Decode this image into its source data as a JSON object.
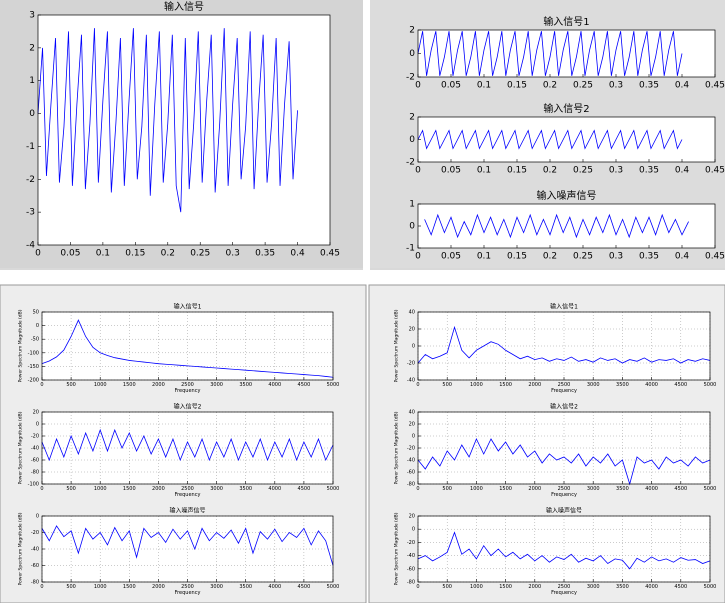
{
  "chart_data": [
    {
      "type": "line",
      "title": "输入信号",
      "color": "#0000ff",
      "x": [
        0,
        0.007,
        0.013,
        0.02,
        0.027,
        0.033,
        0.04,
        0.047,
        0.053,
        0.06,
        0.067,
        0.073,
        0.08,
        0.087,
        0.093,
        0.1,
        0.107,
        0.113,
        0.12,
        0.127,
        0.133,
        0.14,
        0.147,
        0.153,
        0.16,
        0.167,
        0.173,
        0.18,
        0.187,
        0.193,
        0.2,
        0.207,
        0.213,
        0.22,
        0.227,
        0.233,
        0.24,
        0.247,
        0.253,
        0.26,
        0.267,
        0.273,
        0.28,
        0.287,
        0.293,
        0.3,
        0.307,
        0.313,
        0.32,
        0.327,
        0.333,
        0.34,
        0.347,
        0.353,
        0.36,
        0.367,
        0.373,
        0.38,
        0.387,
        0.393,
        0.4
      ],
      "values": [
        0,
        2.0,
        -1.9,
        0.3,
        2.3,
        -2.1,
        -0.4,
        2.5,
        -2.2,
        0.3,
        2.4,
        -2.3,
        -0.3,
        2.6,
        -2.1,
        0.4,
        2.5,
        -2.4,
        -0.3,
        2.3,
        -2.2,
        0.3,
        2.6,
        -2.0,
        -0.4,
        2.4,
        -2.5,
        0.3,
        2.5,
        -2.1,
        -0.3,
        2.4,
        -2.2,
        -3.0,
        2.3,
        -2.3,
        -0.3,
        2.5,
        -2.1,
        0.4,
        2.4,
        -2.4,
        -0.3,
        2.6,
        -2.2,
        0.3,
        2.3,
        -2.0,
        -0.4,
        2.5,
        -2.3,
        0.3,
        2.4,
        -2.1,
        -0.3,
        2.3,
        -2.2,
        0.3,
        2.2,
        -2.0,
        0.1
      ],
      "xlim": [
        0,
        0.45
      ],
      "xticks": [
        0,
        0.05,
        0.1,
        0.15,
        0.2,
        0.25,
        0.3,
        0.35,
        0.4,
        0.45
      ],
      "ylim": [
        -4,
        3
      ],
      "yticks": [
        -4,
        -3,
        -2,
        -1,
        0,
        1,
        2,
        3
      ],
      "grid": false
    },
    {
      "type": "line",
      "title": "输入信号1",
      "color": "#0000ff",
      "x": [
        0,
        0.007,
        0.013,
        0.02,
        0.027,
        0.033,
        0.04,
        0.047,
        0.053,
        0.06,
        0.067,
        0.073,
        0.08,
        0.087,
        0.093,
        0.1,
        0.107,
        0.113,
        0.12,
        0.127,
        0.133,
        0.14,
        0.147,
        0.153,
        0.16,
        0.167,
        0.173,
        0.18,
        0.187,
        0.193,
        0.2,
        0.207,
        0.213,
        0.22,
        0.227,
        0.233,
        0.24,
        0.247,
        0.253,
        0.26,
        0.267,
        0.273,
        0.28,
        0.287,
        0.293,
        0.3,
        0.307,
        0.313,
        0.32,
        0.327,
        0.333,
        0.34,
        0.347,
        0.353,
        0.36,
        0.367,
        0.373,
        0.38,
        0.387,
        0.393,
        0.4
      ],
      "values": [
        0,
        1.9,
        -1.9,
        0.3,
        1.9,
        -1.9,
        -0.3,
        1.9,
        -1.9,
        0.3,
        1.9,
        -1.9,
        -0.3,
        1.9,
        -1.9,
        0.3,
        1.9,
        -1.9,
        -0.3,
        1.9,
        -1.9,
        0.3,
        1.9,
        -1.9,
        -0.3,
        1.9,
        -1.9,
        0.3,
        1.9,
        -1.9,
        -0.3,
        1.9,
        -1.9,
        0.3,
        1.9,
        -1.9,
        -0.3,
        1.9,
        -1.9,
        0.3,
        1.9,
        -1.9,
        -0.3,
        1.9,
        -1.9,
        0.3,
        1.9,
        -1.9,
        -0.3,
        1.9,
        -1.9,
        0.3,
        1.9,
        -1.9,
        -0.3,
        1.9,
        -1.9,
        0.3,
        1.9,
        -1.9,
        0
      ],
      "xlim": [
        0,
        0.45
      ],
      "xticks": [
        0,
        0.05,
        0.1,
        0.15,
        0.2,
        0.25,
        0.3,
        0.35,
        0.4,
        0.45
      ],
      "ylim": [
        -2,
        2
      ],
      "yticks": [
        -2,
        0,
        2
      ],
      "grid": false
    },
    {
      "type": "line",
      "title": "输入信号2",
      "color": "#0000ff",
      "x": [
        0,
        0.007,
        0.013,
        0.02,
        0.027,
        0.033,
        0.04,
        0.047,
        0.053,
        0.06,
        0.067,
        0.073,
        0.08,
        0.087,
        0.093,
        0.1,
        0.107,
        0.113,
        0.12,
        0.127,
        0.133,
        0.14,
        0.147,
        0.153,
        0.16,
        0.167,
        0.173,
        0.18,
        0.187,
        0.193,
        0.2,
        0.207,
        0.213,
        0.22,
        0.227,
        0.233,
        0.24,
        0.247,
        0.253,
        0.26,
        0.267,
        0.273,
        0.28,
        0.287,
        0.293,
        0.3,
        0.307,
        0.313,
        0.32,
        0.327,
        0.333,
        0.34,
        0.347,
        0.353,
        0.36,
        0.367,
        0.373,
        0.38,
        0.387,
        0.393,
        0.4
      ],
      "values": [
        0,
        0.8,
        -0.8,
        0,
        0.8,
        -0.8,
        0,
        0.8,
        -0.8,
        0,
        0.8,
        -0.8,
        0,
        0.8,
        -0.8,
        0,
        0.8,
        -0.8,
        0,
        0.8,
        -0.8,
        0,
        0.8,
        -0.8,
        0,
        0.8,
        -0.8,
        0,
        0.8,
        -0.8,
        0,
        0.8,
        -0.8,
        0,
        0.8,
        -0.8,
        0,
        0.8,
        -0.8,
        0,
        0.8,
        -0.8,
        0,
        0.8,
        -0.8,
        0,
        0.8,
        -0.8,
        0,
        0.8,
        -0.8,
        0,
        0.8,
        -0.8,
        0,
        0.8,
        -0.8,
        0,
        0.8,
        -0.8,
        0
      ],
      "xlim": [
        0,
        0.45
      ],
      "xticks": [
        0,
        0.05,
        0.1,
        0.15,
        0.2,
        0.25,
        0.3,
        0.35,
        0.4,
        0.45
      ],
      "ylim": [
        -2,
        2
      ],
      "yticks": [
        -2,
        0,
        2
      ],
      "grid": false
    },
    {
      "type": "line",
      "title": "输入噪声信号",
      "color": "#0000ff",
      "x": [
        0.01,
        0.02,
        0.03,
        0.04,
        0.05,
        0.06,
        0.07,
        0.08,
        0.09,
        0.1,
        0.11,
        0.12,
        0.13,
        0.14,
        0.15,
        0.16,
        0.17,
        0.18,
        0.19,
        0.2,
        0.21,
        0.22,
        0.23,
        0.24,
        0.25,
        0.26,
        0.27,
        0.28,
        0.29,
        0.3,
        0.31,
        0.32,
        0.33,
        0.34,
        0.35,
        0.36,
        0.37,
        0.38,
        0.39,
        0.4,
        0.41
      ],
      "values": [
        0.3,
        -0.4,
        0.5,
        -0.3,
        0.4,
        -0.5,
        0.2,
        -0.4,
        0.5,
        -0.3,
        0.4,
        -0.4,
        0.3,
        -0.5,
        0.4,
        -0.3,
        0.5,
        -0.4,
        0.3,
        -0.4,
        0.5,
        -0.3,
        0.4,
        -0.5,
        0.3,
        -0.4,
        0.4,
        -0.3,
        0.5,
        -0.4,
        0.3,
        -0.5,
        0.4,
        -0.3,
        0.4,
        -0.4,
        0.5,
        -0.3,
        0.3,
        -0.4,
        0.2
      ],
      "xlim": [
        0,
        0.45
      ],
      "xticks": [
        0,
        0.05,
        0.1,
        0.15,
        0.2,
        0.25,
        0.3,
        0.35,
        0.4,
        0.45
      ],
      "ylim": [
        -1,
        1
      ],
      "yticks": [
        -1,
        0,
        1
      ],
      "grid": false
    },
    {
      "type": "line",
      "title": "输入信号1",
      "xlabel": "Frequency",
      "ylabel": "Power Spectrum Magnitude (dB)",
      "color": "#0000ff",
      "x": [
        0,
        125,
        250,
        375,
        500,
        625,
        750,
        875,
        1000,
        1125,
        1250,
        1375,
        1500,
        1625,
        1750,
        1875,
        2000,
        2125,
        2250,
        2375,
        2500,
        2625,
        2750,
        2875,
        3000,
        3125,
        3250,
        3375,
        3500,
        3625,
        3750,
        3875,
        4000,
        4125,
        4250,
        4375,
        4500,
        4625,
        4750,
        4875,
        5000
      ],
      "values": [
        -140,
        -130,
        -115,
        -90,
        -40,
        20,
        -40,
        -80,
        -100,
        -110,
        -118,
        -123,
        -128,
        -131,
        -134,
        -137,
        -140,
        -142,
        -144,
        -146,
        -148,
        -150,
        -152,
        -154,
        -156,
        -158,
        -160,
        -162,
        -164,
        -166,
        -168,
        -170,
        -172,
        -174,
        -176,
        -178,
        -180,
        -182,
        -184,
        -187,
        -190
      ],
      "xlim": [
        0,
        5000
      ],
      "xticks": [
        0,
        500,
        1000,
        1500,
        2000,
        2500,
        3000,
        3500,
        4000,
        4500,
        5000
      ],
      "ylim": [
        -200,
        50
      ],
      "yticks": [
        -200,
        -150,
        -100,
        -50,
        0,
        50
      ],
      "grid": true
    },
    {
      "type": "line",
      "title": "输入信号2",
      "xlabel": "Frequency",
      "ylabel": "Power Spectrum Magnitude (dB)",
      "color": "#0000ff",
      "x": [
        0,
        125,
        250,
        375,
        500,
        625,
        750,
        875,
        1000,
        1125,
        1250,
        1375,
        1500,
        1625,
        1750,
        1875,
        2000,
        2125,
        2250,
        2375,
        2500,
        2625,
        2750,
        2875,
        3000,
        3125,
        3250,
        3375,
        3500,
        3625,
        3750,
        3875,
        4000,
        4125,
        4250,
        4375,
        4500,
        4625,
        4750,
        4875,
        5000
      ],
      "values": [
        -30,
        -60,
        -25,
        -55,
        -20,
        -50,
        -15,
        -45,
        -10,
        -45,
        -10,
        -40,
        -15,
        -45,
        -20,
        -50,
        -25,
        -55,
        -25,
        -60,
        -30,
        -55,
        -25,
        -60,
        -30,
        -55,
        -25,
        -60,
        -30,
        -55,
        -25,
        -60,
        -30,
        -55,
        -25,
        -60,
        -30,
        -55,
        -25,
        -60,
        -35
      ],
      "xlim": [
        0,
        5000
      ],
      "xticks": [
        0,
        500,
        1000,
        1500,
        2000,
        2500,
        3000,
        3500,
        4000,
        4500,
        5000
      ],
      "ylim": [
        -100,
        20
      ],
      "yticks": [
        -100,
        -80,
        -60,
        -40,
        -20,
        0,
        20
      ],
      "grid": true
    },
    {
      "type": "line",
      "title": "输入噪声信号",
      "xlabel": "Frequency",
      "ylabel": "Power Spectrum Magnitude (dB)",
      "color": "#0000ff",
      "x": [
        0,
        125,
        250,
        375,
        500,
        625,
        750,
        875,
        1000,
        1125,
        1250,
        1375,
        1500,
        1625,
        1750,
        1875,
        2000,
        2125,
        2250,
        2375,
        2500,
        2625,
        2750,
        2875,
        3000,
        3125,
        3250,
        3375,
        3500,
        3625,
        3750,
        3875,
        4000,
        4125,
        4250,
        4375,
        4500,
        4625,
        4750,
        4875,
        5000
      ],
      "values": [
        -15,
        -30,
        -12,
        -25,
        -18,
        -45,
        -15,
        -28,
        -20,
        -35,
        -14,
        -30,
        -18,
        -50,
        -15,
        -26,
        -20,
        -32,
        -16,
        -28,
        -18,
        -40,
        -15,
        -30,
        -20,
        -27,
        -17,
        -33,
        -15,
        -45,
        -19,
        -28,
        -16,
        -31,
        -20,
        -26,
        -15,
        -35,
        -18,
        -30,
        -60
      ],
      "xlim": [
        0,
        5000
      ],
      "xticks": [
        0,
        500,
        1000,
        1500,
        2000,
        2500,
        3000,
        3500,
        4000,
        4500,
        5000
      ],
      "ylim": [
        -80,
        0
      ],
      "yticks": [
        -80,
        -60,
        -40,
        -20,
        0
      ],
      "grid": true
    },
    {
      "type": "line",
      "title": "输入信号1",
      "xlabel": "Frequency",
      "ylabel": "Power Spectrum Magnitude (dB)",
      "color": "#0000ff",
      "x": [
        0,
        125,
        250,
        375,
        500,
        625,
        750,
        875,
        1000,
        1125,
        1250,
        1375,
        1500,
        1625,
        1750,
        1875,
        2000,
        2125,
        2250,
        2375,
        2500,
        2625,
        2750,
        2875,
        3000,
        3125,
        3250,
        3375,
        3500,
        3625,
        3750,
        3875,
        4000,
        4125,
        4250,
        4375,
        4500,
        4625,
        4750,
        4875,
        5000
      ],
      "values": [
        -20,
        -10,
        -15,
        -12,
        -8,
        22,
        -5,
        -14,
        -5,
        0,
        5,
        2,
        -5,
        -10,
        -15,
        -12,
        -16,
        -14,
        -18,
        -15,
        -17,
        -13,
        -18,
        -16,
        -19,
        -14,
        -17,
        -15,
        -20,
        -16,
        -18,
        -14,
        -19,
        -16,
        -17,
        -15,
        -20,
        -16,
        -18,
        -15,
        -17
      ],
      "xlim": [
        0,
        5000
      ],
      "xticks": [
        0,
        500,
        1000,
        1500,
        2000,
        2500,
        3000,
        3500,
        4000,
        4500,
        5000
      ],
      "ylim": [
        -40,
        40
      ],
      "yticks": [
        -40,
        -20,
        0,
        20,
        40
      ],
      "grid": true
    },
    {
      "type": "line",
      "title": "输入信号2",
      "xlabel": "Frequency",
      "ylabel": "Power Spectrum Magnitude (dB)",
      "color": "#0000ff",
      "x": [
        0,
        125,
        250,
        375,
        500,
        625,
        750,
        875,
        1000,
        1125,
        1250,
        1375,
        1500,
        1625,
        1750,
        1875,
        2000,
        2125,
        2250,
        2375,
        2500,
        2625,
        2750,
        2875,
        3000,
        3125,
        3250,
        3375,
        3500,
        3625,
        3750,
        3875,
        4000,
        4125,
        4250,
        4375,
        4500,
        4625,
        4750,
        4875,
        5000
      ],
      "values": [
        -40,
        -55,
        -35,
        -50,
        -25,
        -40,
        -15,
        -35,
        -5,
        -30,
        -5,
        -25,
        -10,
        -30,
        -15,
        -35,
        -25,
        -45,
        -30,
        -40,
        -35,
        -45,
        -30,
        -50,
        -35,
        -45,
        -30,
        -50,
        -40,
        -80,
        -35,
        -45,
        -40,
        -55,
        -35,
        -45,
        -40,
        -50,
        -35,
        -45,
        -40
      ],
      "xlim": [
        0,
        5000
      ],
      "xticks": [
        0,
        500,
        1000,
        1500,
        2000,
        2500,
        3000,
        3500,
        4000,
        4500,
        5000
      ],
      "ylim": [
        -80,
        40
      ],
      "yticks": [
        -80,
        -60,
        -40,
        -20,
        0,
        20,
        40
      ],
      "grid": true
    },
    {
      "type": "line",
      "title": "输入噪声信号",
      "xlabel": "Frequency",
      "ylabel": "Power Spectrum Magnitude (dB)",
      "color": "#0000ff",
      "x": [
        0,
        125,
        250,
        375,
        500,
        625,
        750,
        875,
        1000,
        1125,
        1250,
        1375,
        1500,
        1625,
        1750,
        1875,
        2000,
        2125,
        2250,
        2375,
        2500,
        2625,
        2750,
        2875,
        3000,
        3125,
        3250,
        3375,
        3500,
        3625,
        3750,
        3875,
        4000,
        4125,
        4250,
        4375,
        4500,
        4625,
        4750,
        4875,
        5000
      ],
      "values": [
        -45,
        -40,
        -48,
        -42,
        -35,
        -5,
        -38,
        -30,
        -45,
        -25,
        -40,
        -30,
        -42,
        -35,
        -45,
        -38,
        -48,
        -40,
        -50,
        -42,
        -46,
        -38,
        -50,
        -44,
        -48,
        -40,
        -52,
        -45,
        -47,
        -60,
        -44,
        -50,
        -42,
        -48,
        -45,
        -50,
        -43,
        -47,
        -46,
        -52,
        -48
      ],
      "xlim": [
        0,
        5000
      ],
      "xticks": [
        0,
        500,
        1000,
        1500,
        2000,
        2500,
        3000,
        3500,
        4000,
        4500,
        5000
      ],
      "ylim": [
        -80,
        20
      ],
      "yticks": [
        -80,
        -60,
        -40,
        -20,
        0,
        20
      ],
      "grid": true
    }
  ]
}
